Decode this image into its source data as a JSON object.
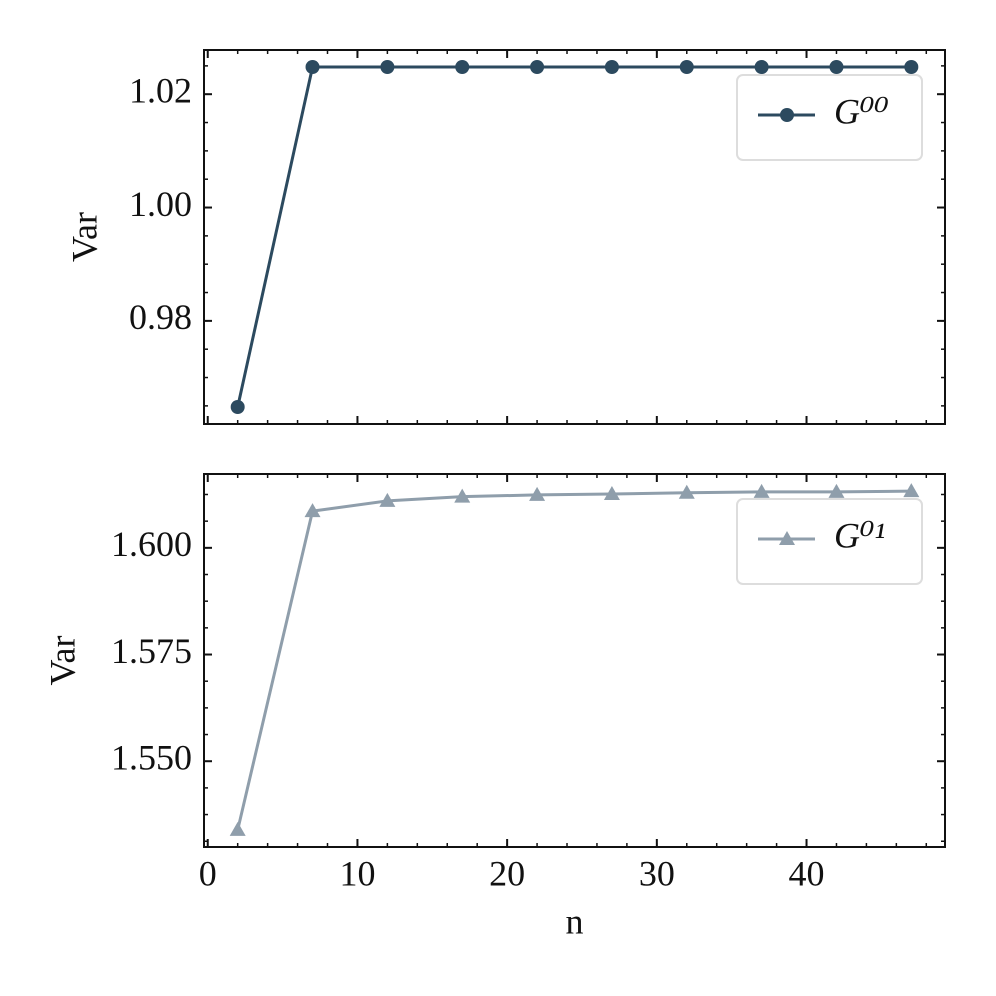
{
  "chart_data": [
    {
      "type": "line",
      "ylabel": "Var",
      "xlim": [
        -0.25,
        49.25
      ],
      "xticks": [
        0,
        10,
        20,
        30,
        40
      ],
      "show_xtick_labels": false,
      "ylim": [
        0.9618,
        1.0278
      ],
      "yticks": [
        {
          "value": 0.98,
          "label": "0.98"
        },
        {
          "value": 1.0,
          "label": "1.00"
        },
        {
          "value": 1.02,
          "label": "1.02"
        }
      ],
      "x": [
        2,
        7,
        12,
        17,
        22,
        27,
        32,
        37,
        42,
        47
      ],
      "series": [
        {
          "name": "G⁰⁰",
          "color": "#2c4a5f",
          "marker": "circle",
          "values": [
            0.9648,
            1.0248,
            1.0248,
            1.0248,
            1.0248,
            1.0248,
            1.0248,
            1.0248,
            1.0248,
            1.0248
          ]
        }
      ],
      "legend": "upper right"
    },
    {
      "type": "line",
      "ylabel": "Var",
      "xlabel": "n",
      "xlim": [
        -0.25,
        49.25
      ],
      "xticks": [
        0,
        10,
        20,
        30,
        40
      ],
      "show_xtick_labels": true,
      "ylim": [
        1.5299,
        1.6173
      ],
      "yticks": [
        {
          "value": 1.55,
          "label": "1.550"
        },
        {
          "value": 1.575,
          "label": "1.575"
        },
        {
          "value": 1.6,
          "label": "1.600"
        }
      ],
      "x": [
        2,
        7,
        12,
        17,
        22,
        27,
        32,
        37,
        42,
        47
      ],
      "series": [
        {
          "name": "G⁰¹",
          "color": "#8f9eab",
          "marker": "triangle",
          "values": [
            1.5339,
            1.6086,
            1.611,
            1.612,
            1.6124,
            1.6126,
            1.6129,
            1.6131,
            1.6131,
            1.6133
          ]
        }
      ],
      "legend": "upper right"
    }
  ]
}
